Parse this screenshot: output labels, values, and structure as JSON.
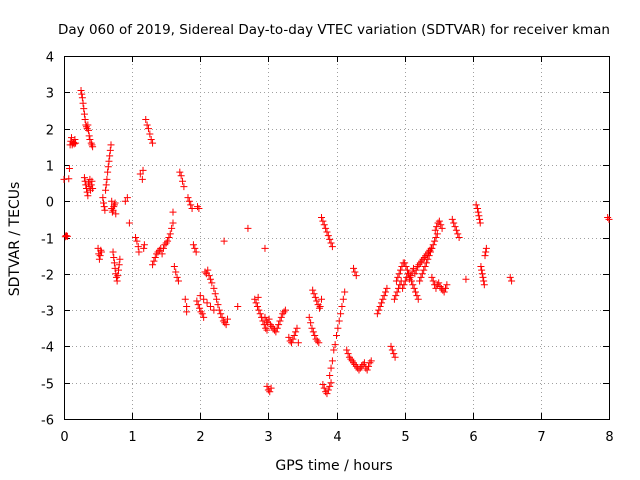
{
  "chart_data": {
    "type": "scatter",
    "title": "Day 060 of 2019, Sidereal Day-to-day VTEC variation (SDTVAR) for receiver kman",
    "xlabel": "GPS time / hours",
    "ylabel": "SDTVAR / TECUs",
    "xlim": [
      0,
      8
    ],
    "ylim": [
      -6,
      4
    ],
    "xticks": [
      0,
      1,
      2,
      3,
      4,
      5,
      6,
      7,
      8
    ],
    "yticks": [
      -6,
      -5,
      -4,
      -3,
      -2,
      -1,
      0,
      1,
      2,
      3,
      4
    ],
    "grid": true,
    "marker": "+",
    "color": "#ff0000",
    "series": [
      {
        "name": "SDTVAR",
        "x": [
          0.0,
          0.02,
          0.03,
          0.04,
          0.05,
          0.07,
          0.08,
          0.09,
          0.1,
          0.11,
          0.12,
          0.13,
          0.14,
          0.15,
          0.16,
          0.17,
          0.25,
          0.26,
          0.27,
          0.28,
          0.29,
          0.3,
          0.31,
          0.32,
          0.33,
          0.34,
          0.35,
          0.36,
          0.37,
          0.38,
          0.4,
          0.41,
          0.42,
          0.3,
          0.31,
          0.32,
          0.33,
          0.34,
          0.35,
          0.36,
          0.37,
          0.38,
          0.39,
          0.4,
          0.41,
          0.42,
          0.5,
          0.51,
          0.52,
          0.53,
          0.54,
          0.55,
          0.57,
          0.58,
          0.59,
          0.6,
          0.61,
          0.62,
          0.63,
          0.64,
          0.65,
          0.66,
          0.67,
          0.68,
          0.69,
          0.7,
          0.7,
          0.71,
          0.72,
          0.73,
          0.74,
          0.75,
          0.76,
          0.72,
          0.73,
          0.74,
          0.75,
          0.76,
          0.77,
          0.78,
          0.79,
          0.8,
          0.81,
          0.82,
          0.9,
          0.93,
          0.96,
          1.05,
          1.07,
          1.09,
          1.1,
          1.12,
          1.15,
          1.16,
          1.17,
          1.18,
          1.2,
          1.22,
          1.24,
          1.26,
          1.28,
          1.3,
          1.3,
          1.32,
          1.34,
          1.36,
          1.38,
          1.4,
          1.42,
          1.44,
          1.46,
          1.48,
          1.5,
          1.52,
          1.54,
          1.56,
          1.58,
          1.6,
          1.6,
          1.62,
          1.64,
          1.66,
          1.68,
          1.7,
          1.72,
          1.74,
          1.76,
          1.78,
          1.8,
          1.8,
          1.82,
          1.84,
          1.86,
          1.88,
          1.9,
          1.92,
          1.94,
          1.96,
          1.98,
          1.95,
          1.97,
          1.99,
          2.01,
          2.03,
          2.05,
          2.07,
          2.09,
          2.11,
          2.13,
          2.15,
          2.17,
          2.0,
          2.05,
          2.1,
          2.15,
          2.2,
          2.2,
          2.22,
          2.24,
          2.26,
          2.28,
          2.3,
          2.32,
          2.34,
          2.36,
          2.38,
          2.4,
          2.35,
          2.55,
          2.7,
          2.85,
          2.95,
          2.8,
          2.82,
          2.84,
          2.86,
          2.88,
          2.9,
          2.92,
          2.94,
          2.96,
          2.98,
          2.95,
          2.97,
          2.99,
          3.01,
          3.03,
          3.05,
          3.07,
          3.09,
          3.11,
          3.13,
          3.15,
          3.17,
          3.19,
          3.21,
          3.23,
          3.25,
          2.98,
          3.0,
          3.02,
          3.04,
          3.3,
          3.32,
          3.34,
          3.36,
          3.38,
          3.4,
          3.42,
          3.44,
          3.6,
          3.62,
          3.64,
          3.66,
          3.68,
          3.7,
          3.72,
          3.74,
          3.76,
          3.78,
          3.65,
          3.67,
          3.69,
          3.71,
          3.73,
          3.75,
          3.78,
          3.8,
          3.82,
          3.84,
          3.86,
          3.88,
          3.9,
          3.92,
          3.94,
          3.8,
          3.82,
          3.84,
          3.86,
          3.88,
          3.9,
          3.92,
          3.9,
          3.92,
          3.94,
          3.96,
          3.98,
          4.0,
          4.02,
          4.04,
          4.06,
          4.08,
          4.1,
          4.12,
          4.15,
          4.17,
          4.19,
          4.21,
          4.23,
          4.25,
          4.27,
          4.29,
          4.31,
          4.33,
          4.35,
          4.37,
          4.39,
          4.41,
          4.43,
          4.45,
          4.47,
          4.49,
          4.51,
          4.25,
          4.27,
          4.29,
          4.6,
          4.62,
          4.64,
          4.66,
          4.68,
          4.7,
          4.72,
          4.74,
          4.8,
          4.82,
          4.84,
          4.86,
          4.88,
          4.9,
          4.92,
          4.94,
          4.96,
          4.98,
          4.85,
          4.87,
          4.89,
          4.91,
          4.93,
          4.95,
          4.97,
          4.99,
          5.01,
          5.03,
          5.05,
          5.07,
          5.09,
          5.11,
          5.13,
          5.15,
          5.17,
          5.19,
          5.21,
          5.23,
          5.25,
          5.27,
          5.29,
          5.31,
          5.33,
          5.35,
          5.37,
          5.39,
          5.0,
          5.02,
          5.04,
          5.06,
          5.08,
          5.1,
          5.12,
          5.14,
          5.16,
          5.18,
          5.2,
          5.22,
          5.24,
          5.26,
          5.28,
          5.3,
          5.32,
          5.34,
          5.36,
          5.38,
          5.4,
          5.42,
          5.44,
          5.46,
          5.48,
          5.4,
          5.42,
          5.44,
          5.46,
          5.48,
          5.5,
          5.52,
          5.54,
          5.56,
          5.58,
          5.6,
          5.62,
          5.45,
          5.47,
          5.49,
          5.51,
          5.53,
          5.55,
          5.7,
          5.72,
          5.74,
          5.76,
          5.78,
          5.8,
          5.9,
          6.05,
          6.07,
          6.08,
          6.09,
          6.1,
          6.11,
          6.12,
          6.13,
          6.14,
          6.15,
          6.16,
          6.17,
          6.18,
          6.19,
          6.2,
          6.55,
          6.57,
          7.98,
          8.0
        ]
      }
    ],
    "y_values": [
      0.6,
      -0.98,
      -0.95,
      -0.96,
      -0.97,
      0.62,
      0.9,
      1.55,
      1.65,
      1.75,
      1.55,
      1.6,
      1.62,
      1.58,
      1.7,
      1.6,
      3.05,
      2.95,
      2.85,
      2.7,
      2.55,
      2.4,
      2.25,
      2.1,
      2.05,
      2.0,
      2.1,
      1.95,
      1.8,
      1.7,
      1.6,
      1.55,
      1.5,
      0.65,
      0.55,
      0.45,
      0.35,
      0.25,
      0.15,
      0.5,
      0.4,
      0.6,
      0.3,
      0.45,
      0.55,
      0.35,
      -1.3,
      -1.45,
      -1.6,
      -1.5,
      -1.35,
      -1.4,
      0.1,
      -0.05,
      -0.15,
      -0.25,
      0.3,
      0.45,
      0.6,
      0.8,
      0.95,
      1.1,
      1.25,
      1.4,
      1.55,
      0.0,
      -0.2,
      -0.3,
      -0.25,
      -0.15,
      -0.1,
      -0.05,
      -0.35,
      -1.4,
      -1.55,
      -1.7,
      -1.85,
      -2.0,
      -2.1,
      -2.2,
      -2.05,
      -1.9,
      -1.75,
      -1.6,
      0.0,
      0.1,
      -0.6,
      -1.0,
      -1.1,
      -1.25,
      -1.4,
      0.75,
      0.6,
      0.85,
      -1.3,
      -1.2,
      2.25,
      2.1,
      2.0,
      1.85,
      1.7,
      1.6,
      -1.75,
      -1.65,
      -1.55,
      -1.45,
      -1.4,
      -1.35,
      -1.3,
      -1.45,
      -1.3,
      -1.2,
      -1.15,
      -1.1,
      -1.0,
      -0.9,
      -0.75,
      -0.6,
      -0.3,
      -1.8,
      -1.95,
      -2.1,
      -2.2,
      0.8,
      0.7,
      0.55,
      0.4,
      -2.7,
      -2.9,
      -3.05,
      0.1,
      0.0,
      -0.1,
      -0.2,
      -1.2,
      -1.3,
      -1.4,
      -0.15,
      -0.2,
      -2.75,
      -2.85,
      -2.95,
      -3.05,
      -3.1,
      -3.2,
      -1.95,
      -2.0,
      -1.9,
      -2.05,
      -2.15,
      -2.25,
      -2.6,
      -2.7,
      -2.8,
      -2.9,
      -3.0,
      -2.4,
      -2.55,
      -2.7,
      -2.85,
      -3.0,
      -3.1,
      -3.2,
      -3.3,
      -3.35,
      -3.4,
      -3.25,
      -1.1,
      -2.9,
      -0.75,
      -2.65,
      -1.3,
      -2.7,
      -2.8,
      -2.9,
      -3.0,
      -3.1,
      -3.2,
      -3.3,
      -3.4,
      -3.5,
      -3.55,
      -3.2,
      -3.3,
      -3.35,
      -3.25,
      -3.4,
      -3.45,
      -3.5,
      -3.55,
      -3.6,
      -3.5,
      -3.4,
      -3.3,
      -3.2,
      -3.1,
      -3.05,
      -3.0,
      -5.1,
      -5.2,
      -5.25,
      -5.15,
      -3.75,
      -3.85,
      -3.9,
      -3.8,
      -3.7,
      -3.6,
      -3.5,
      -3.9,
      -3.2,
      -3.35,
      -3.5,
      -3.6,
      -3.7,
      -3.8,
      -3.85,
      -3.9,
      -2.9,
      -2.7,
      -2.45,
      -2.55,
      -2.65,
      -2.75,
      -2.85,
      -2.95,
      -0.45,
      -0.55,
      -0.65,
      -0.75,
      -0.85,
      -0.95,
      -1.05,
      -1.15,
      -1.25,
      -5.05,
      -5.15,
      -5.25,
      -5.3,
      -5.2,
      -5.1,
      -5.0,
      -4.8,
      -4.6,
      -4.4,
      -4.1,
      -3.95,
      -3.7,
      -3.5,
      -3.3,
      -3.1,
      -2.9,
      -2.7,
      -2.5,
      -4.1,
      -4.2,
      -4.3,
      -4.35,
      -4.4,
      -4.45,
      -4.5,
      -4.55,
      -4.6,
      -4.65,
      -4.6,
      -4.55,
      -4.5,
      -4.45,
      -4.6,
      -4.65,
      -4.55,
      -4.45,
      -4.4,
      -1.85,
      -1.95,
      -2.05,
      -3.1,
      -3.0,
      -2.9,
      -2.8,
      -2.7,
      -2.6,
      -2.5,
      -2.4,
      -4.0,
      -4.1,
      -4.2,
      -4.3,
      -2.2,
      -2.1,
      -2.0,
      -1.9,
      -1.8,
      -1.7,
      -2.7,
      -2.6,
      -2.5,
      -2.4,
      -2.3,
      -2.2,
      -2.4,
      -2.3,
      -2.2,
      -2.1,
      -2.0,
      -2.15,
      -2.05,
      -1.95,
      -1.85,
      -2.0,
      -1.9,
      -1.8,
      -1.75,
      -1.7,
      -1.65,
      -1.6,
      -1.55,
      -1.5,
      -1.45,
      -1.4,
      -1.35,
      -1.3,
      -1.7,
      -1.8,
      -1.9,
      -2.0,
      -2.1,
      -2.2,
      -2.3,
      -2.4,
      -2.5,
      -2.6,
      -2.7,
      -2.2,
      -2.1,
      -2.0,
      -1.9,
      -1.8,
      -1.7,
      -1.6,
      -1.5,
      -1.4,
      -1.3,
      -1.2,
      -1.1,
      -1.0,
      -0.9,
      -2.1,
      -2.2,
      -2.3,
      -2.4,
      -2.3,
      -2.25,
      -2.35,
      -2.4,
      -2.45,
      -2.5,
      -2.4,
      -2.3,
      -0.8,
      -0.7,
      -0.6,
      -0.55,
      -0.65,
      -0.75,
      -0.5,
      -0.6,
      -0.7,
      -0.8,
      -0.9,
      -1.0,
      -2.15,
      -0.1,
      -0.2,
      -0.3,
      -0.4,
      -0.5,
      -0.6,
      -1.8,
      -1.9,
      -2.0,
      -2.1,
      -2.2,
      -2.3,
      -1.5,
      -1.4,
      -1.3,
      -2.1,
      -2.2,
      -0.45,
      -0.5
    ]
  },
  "title_text": "Day 060 of 2019, Sidereal Day-to-day VTEC variation (SDTVAR) for receiver kman"
}
